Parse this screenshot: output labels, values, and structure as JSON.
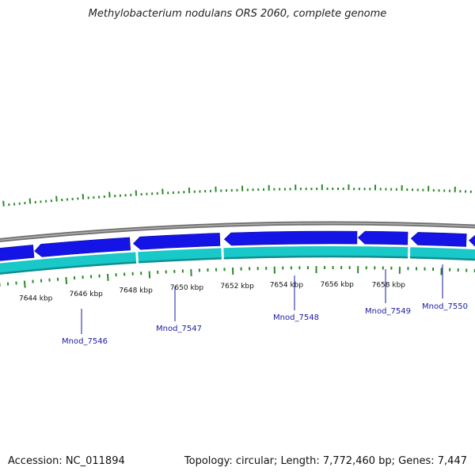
{
  "title": "Methylobacterium nodulans ORS 2060, complete genome",
  "footer": {
    "accession": "Accession: NC_011894",
    "summary": "Topology: circular; Length: 7,772,460 bp; Genes: 7,447"
  },
  "colors": {
    "backbone": "#8a8a8a",
    "gene_forward": "#1414e6",
    "gene_reverse": "#19c8c8",
    "tick": "#2a8a2a",
    "gene_label": "#1a1aa6"
  },
  "scale_labels": [
    "7644 kbp",
    "7646 kbp",
    "7648 kbp",
    "7650 kbp",
    "7652 kbp",
    "7654 kbp",
    "7656 kbp",
    "7658 kbp"
  ],
  "gene_labels": [
    "Mnod_7546",
    "Mnod_7547",
    "Mnod_7548",
    "Mnod_7549",
    "Mnod_7550"
  ]
}
